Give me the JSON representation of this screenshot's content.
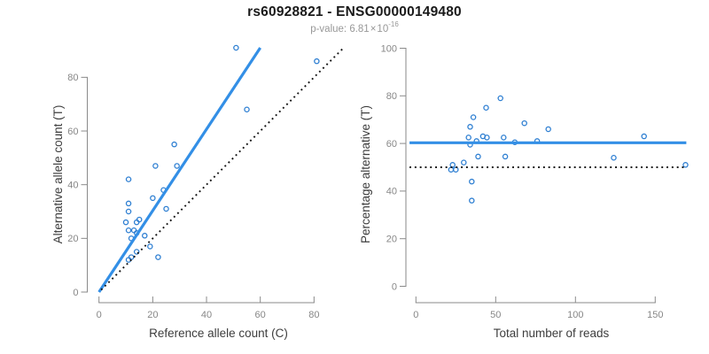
{
  "header": {
    "title": "rs60928821 - ENSG00000149480",
    "p_value_prefix": "p-value: ",
    "p_value_mantissa": "6.81",
    "p_value_times": "×",
    "p_value_base": "10",
    "p_value_exponent": "-16"
  },
  "colors": {
    "point_blue": "#2E7FD2",
    "line_blue": "#338FE6",
    "dotted_black": "#141414",
    "axis_line": "#8a8a8a",
    "tick_label": "#878787",
    "axis_title": "#3d3d3d",
    "title_color": "#1a1a1a",
    "subtitle_gray": "#989898"
  },
  "chart_data": [
    {
      "type": "scatter",
      "name": "allele-counts-scatter",
      "xlabel": "Reference allele count (C)",
      "ylabel": "Alternative allele count (T)",
      "xticks": [
        0,
        20,
        40,
        60,
        80
      ],
      "yticks": [
        0,
        20,
        40,
        60,
        80
      ],
      "xlim": [
        0,
        91
      ],
      "ylim": [
        0,
        93
      ],
      "grid": false,
      "legend": "none",
      "point_color": "#2E7FD2",
      "points": [
        [
          51,
          91
        ],
        [
          81,
          86
        ],
        [
          55,
          68
        ],
        [
          28,
          55
        ],
        [
          21,
          47
        ],
        [
          29,
          47
        ],
        [
          11,
          42
        ],
        [
          24,
          38
        ],
        [
          20,
          35
        ],
        [
          11,
          33
        ],
        [
          25,
          31
        ],
        [
          11,
          30
        ],
        [
          15,
          27
        ],
        [
          14,
          26
        ],
        [
          10,
          26
        ],
        [
          13,
          23
        ],
        [
          11,
          23
        ],
        [
          14,
          22
        ],
        [
          17,
          21
        ],
        [
          12,
          20
        ],
        [
          19,
          17
        ],
        [
          14,
          15
        ],
        [
          22,
          13
        ],
        [
          12,
          13
        ],
        [
          11,
          12
        ]
      ],
      "lines": [
        {
          "name": "regression-line",
          "style": "solid",
          "color": "#338FE6",
          "width": 3.2,
          "x1": 0,
          "y1": 0,
          "x2": 60,
          "y2": 91
        },
        {
          "name": "identity-line",
          "style": "dotted",
          "color": "#141414",
          "width": 1.9,
          "x1": 0.8,
          "y1": 0.8,
          "x2": 90.5,
          "y2": 90.5
        }
      ]
    },
    {
      "type": "scatter",
      "name": "percentage-vs-reads-scatter",
      "xlabel": "Total number of reads",
      "ylabel": "Percentage alternative (T)",
      "xticks": [
        0,
        50,
        100,
        150
      ],
      "yticks": [
        0,
        20,
        40,
        60,
        80,
        100
      ],
      "xlim": [
        0,
        170
      ],
      "ylim": [
        0,
        100
      ],
      "grid": false,
      "legend": "none",
      "point_color": "#2E7FD2",
      "points": [
        [
          53,
          79
        ],
        [
          44,
          75
        ],
        [
          36,
          71
        ],
        [
          34,
          67
        ],
        [
          68,
          68.5
        ],
        [
          83,
          66
        ],
        [
          33,
          62.5
        ],
        [
          42,
          63
        ],
        [
          44.5,
          62.5
        ],
        [
          38,
          61
        ],
        [
          55,
          62.5
        ],
        [
          62,
          60.5
        ],
        [
          34,
          59.5
        ],
        [
          76,
          61
        ],
        [
          143,
          63
        ],
        [
          39,
          54.5
        ],
        [
          56,
          54.5
        ],
        [
          30,
          52
        ],
        [
          23,
          51
        ],
        [
          22,
          49
        ],
        [
          25,
          49
        ],
        [
          124,
          54
        ],
        [
          169,
          51
        ],
        [
          35,
          44
        ],
        [
          35,
          36
        ]
      ],
      "lines": [
        {
          "name": "mean-percentage-line",
          "style": "solid",
          "color": "#338FE6",
          "width": 3.2,
          "x1": -4,
          "y1": 60.3,
          "x2": 169.5,
          "y2": 60.3
        },
        {
          "name": "fifty-percent-line",
          "style": "dotted",
          "color": "#141414",
          "width": 1.9,
          "x1": -4,
          "y1": 50,
          "x2": 169.5,
          "y2": 50
        }
      ]
    }
  ]
}
